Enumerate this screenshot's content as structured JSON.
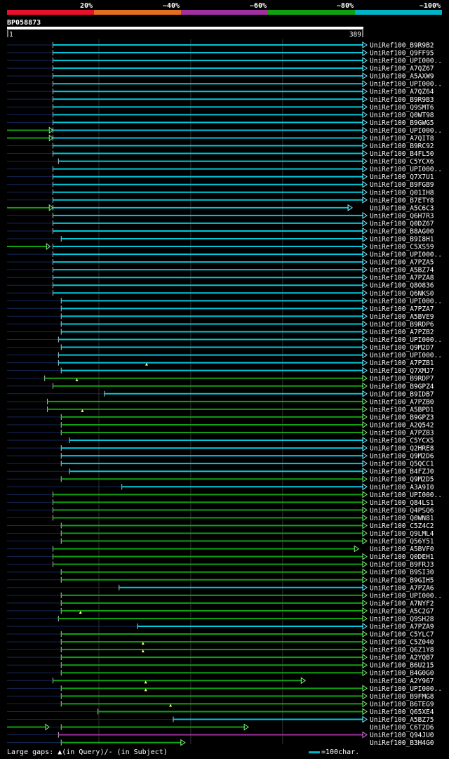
{
  "query_id": "BP058873",
  "query_start": "1",
  "query_end": "389",
  "identity_legend": [
    {
      "label": "20%",
      "color": "#e8102a"
    },
    {
      "label": "~40%",
      "color": "#e07020"
    },
    {
      "label": "~60%",
      "color": "#a030a0"
    },
    {
      "label": "~80%",
      "color": "#10a010"
    },
    {
      "label": "~100%",
      "color": "#00b4c8"
    }
  ],
  "footer": {
    "gaps_note": "Large gaps: ▲(in Query)/- (in Subject)",
    "scale_note": "=100char."
  },
  "chart_data": {
    "type": "alignment-overview",
    "query_length": 389,
    "hits": [
      {
        "name": "UniRef100_B9R9B2",
        "start": 51,
        "end": 389,
        "color": "cyan",
        "arrow": true
      },
      {
        "name": "UniRef100_Q9FF95",
        "start": 51,
        "end": 389,
        "color": "cyan",
        "arrow": true
      },
      {
        "name": "UniRef100_UPI000..",
        "start": 51,
        "end": 389,
        "color": "cyan",
        "arrow": true
      },
      {
        "name": "UniRef100_A7QZ67",
        "start": 51,
        "end": 389,
        "color": "cyan",
        "arrow": true
      },
      {
        "name": "UniRef100_A5AXW9",
        "start": 51,
        "end": 389,
        "color": "cyan",
        "arrow": true
      },
      {
        "name": "UniRef100_UPI000..",
        "start": 51,
        "end": 389,
        "color": "cyan",
        "arrow": true
      },
      {
        "name": "UniRef100_A7QZ64",
        "start": 51,
        "end": 389,
        "color": "cyan",
        "arrow": true
      },
      {
        "name": "UniRef100_B9R9B3",
        "start": 51,
        "end": 389,
        "color": "cyan",
        "arrow": true
      },
      {
        "name": "UniRef100_Q9SMT6",
        "start": 51,
        "end": 389,
        "color": "cyan",
        "arrow": true
      },
      {
        "name": "UniRef100_Q0WT98",
        "start": 51,
        "end": 389,
        "color": "cyan",
        "arrow": true
      },
      {
        "name": "UniRef100_B9GWG5",
        "start": 51,
        "end": 389,
        "color": "cyan",
        "arrow": true
      },
      {
        "name": "UniRef100_UPI000..",
        "start": 51,
        "end": 389,
        "color": "cyan",
        "arrow": true,
        "pre": [
          1,
          47
        ]
      },
      {
        "name": "UniRef100_A7QIT8",
        "start": 51,
        "end": 389,
        "color": "cyan",
        "arrow": true,
        "pre": [
          1,
          47
        ]
      },
      {
        "name": "UniRef100_B9RC92",
        "start": 51,
        "end": 389,
        "color": "cyan",
        "arrow": true
      },
      {
        "name": "UniRef100_B4FL50",
        "start": 51,
        "end": 389,
        "color": "cyan",
        "arrow": true
      },
      {
        "name": "UniRef100_C5YCX6",
        "start": 57,
        "end": 389,
        "color": "cyan",
        "arrow": true
      },
      {
        "name": "UniRef100_UPI000..",
        "start": 51,
        "end": 389,
        "color": "cyan",
        "arrow": true
      },
      {
        "name": "UniRef100_Q7X7U1",
        "start": 51,
        "end": 389,
        "color": "cyan",
        "arrow": true
      },
      {
        "name": "UniRef100_B9FGB9",
        "start": 51,
        "end": 389,
        "color": "cyan",
        "arrow": true
      },
      {
        "name": "UniRef100_Q01IH8",
        "start": 51,
        "end": 389,
        "color": "cyan",
        "arrow": true
      },
      {
        "name": "UniRef100_B7ETY8",
        "start": 51,
        "end": 389,
        "color": "cyan",
        "arrow": true
      },
      {
        "name": "UniRef100_A5C6C3",
        "start": 51,
        "end": 373,
        "color": "cyan",
        "arrow": true,
        "pre": [
          1,
          47
        ]
      },
      {
        "name": "UniRef100_Q6H7R3",
        "start": 51,
        "end": 389,
        "color": "cyan",
        "arrow": true
      },
      {
        "name": "UniRef100_Q0DZ67",
        "start": 51,
        "end": 389,
        "color": "cyan",
        "arrow": true
      },
      {
        "name": "UniRef100_B8AG00",
        "start": 51,
        "end": 389,
        "color": "cyan",
        "arrow": true
      },
      {
        "name": "UniRef100_B9I8H1",
        "start": 60,
        "end": 389,
        "color": "cyan",
        "arrow": true
      },
      {
        "name": "UniRef100_C5XS59",
        "start": 51,
        "end": 389,
        "color": "cyan",
        "arrow": true,
        "pre": [
          1,
          44
        ]
      },
      {
        "name": "UniRef100_UPI000..",
        "start": 51,
        "end": 389,
        "color": "cyan",
        "arrow": true
      },
      {
        "name": "UniRef100_A7PZA5",
        "start": 51,
        "end": 389,
        "color": "cyan",
        "arrow": true
      },
      {
        "name": "UniRef100_A5BZ74",
        "start": 51,
        "end": 389,
        "color": "cyan",
        "arrow": true
      },
      {
        "name": "UniRef100_A7PZA8",
        "start": 51,
        "end": 389,
        "color": "cyan",
        "arrow": true
      },
      {
        "name": "UniRef100_Q8O836",
        "start": 51,
        "end": 389,
        "color": "cyan",
        "arrow": true
      },
      {
        "name": "UniRef100_Q6NKS0",
        "start": 51,
        "end": 389,
        "color": "cyan",
        "arrow": true
      },
      {
        "name": "UniRef100_UPI000..",
        "start": 60,
        "end": 389,
        "color": "cyan",
        "arrow": true
      },
      {
        "name": "UniRef100_A7PZA7",
        "start": 60,
        "end": 389,
        "color": "cyan",
        "arrow": true
      },
      {
        "name": "UniRef100_A5BVE9",
        "start": 60,
        "end": 389,
        "color": "cyan",
        "arrow": true
      },
      {
        "name": "UniRef100_B9RDP6",
        "start": 60,
        "end": 389,
        "color": "cyan",
        "arrow": true
      },
      {
        "name": "UniRef100_A7PZB2",
        "start": 60,
        "end": 389,
        "color": "cyan",
        "arrow": true
      },
      {
        "name": "UniRef100_UPI000..",
        "start": 57,
        "end": 389,
        "color": "cyan",
        "arrow": true
      },
      {
        "name": "UniRef100_Q9M2D7",
        "start": 60,
        "end": 389,
        "color": "cyan",
        "arrow": true
      },
      {
        "name": "UniRef100_UPI000..",
        "start": 57,
        "end": 389,
        "color": "cyan",
        "arrow": true
      },
      {
        "name": "UniRef100_A7PZB1",
        "start": 57,
        "end": 389,
        "color": "cyan",
        "arrow": true
      },
      {
        "name": "UniRef100_Q7XMJ7",
        "start": 60,
        "end": 389,
        "color": "cyan",
        "arrow": true,
        "gaps": [
          153
        ]
      },
      {
        "name": "UniRef100_B9RDP7",
        "start": 42,
        "end": 389,
        "color": "green",
        "arrow": true
      },
      {
        "name": "UniRef100_B9GPZ4",
        "start": 51,
        "end": 389,
        "color": "green",
        "arrow": true,
        "gaps": [
          77
        ]
      },
      {
        "name": "UniRef100_B9IDB7",
        "start": 107,
        "end": 389,
        "color": "cyan",
        "arrow": true
      },
      {
        "name": "UniRef100_A7PZB0",
        "start": 45,
        "end": 389,
        "color": "green",
        "arrow": true
      },
      {
        "name": "UniRef100_A5BPD1",
        "start": 45,
        "end": 389,
        "color": "green",
        "arrow": true
      },
      {
        "name": "UniRef100_B9GPZ3",
        "start": 60,
        "end": 389,
        "color": "green",
        "arrow": true,
        "gaps": [
          83
        ]
      },
      {
        "name": "UniRef100_A2Q542",
        "start": 60,
        "end": 389,
        "color": "green",
        "arrow": true
      },
      {
        "name": "UniRef100_A7PZB3",
        "start": 60,
        "end": 389,
        "color": "green",
        "arrow": true
      },
      {
        "name": "UniRef100_C5YCX5",
        "start": 69,
        "end": 389,
        "color": "cyan",
        "arrow": true
      },
      {
        "name": "UniRef100_Q2HRE8",
        "start": 60,
        "end": 389,
        "color": "cyan",
        "arrow": true
      },
      {
        "name": "UniRef100_Q9M2D6",
        "start": 60,
        "end": 389,
        "color": "cyan",
        "arrow": true
      },
      {
        "name": "UniRef100_Q5QCC1",
        "start": 60,
        "end": 389,
        "color": "cyan",
        "arrow": true
      },
      {
        "name": "UniRef100_B4FZJ0",
        "start": 69,
        "end": 389,
        "color": "cyan",
        "arrow": true
      },
      {
        "name": "UniRef100_Q9M2D5",
        "start": 60,
        "end": 389,
        "color": "green",
        "arrow": true
      },
      {
        "name": "UniRef100_A3A9I0",
        "start": 126,
        "end": 389,
        "color": "cyan",
        "arrow": true
      },
      {
        "name": "UniRef100_UPI000..",
        "start": 51,
        "end": 389,
        "color": "green",
        "arrow": true
      },
      {
        "name": "UniRef100_Q84LS1",
        "start": 51,
        "end": 389,
        "color": "green",
        "arrow": true
      },
      {
        "name": "UniRef100_Q4PSQ6",
        "start": 51,
        "end": 389,
        "color": "green",
        "arrow": true
      },
      {
        "name": "UniRef100_Q0WN81",
        "start": 51,
        "end": 389,
        "color": "green",
        "arrow": true
      },
      {
        "name": "UniRef100_C5Z4C2",
        "start": 60,
        "end": 389,
        "color": "green",
        "arrow": true
      },
      {
        "name": "UniRef100_Q9LML4",
        "start": 60,
        "end": 389,
        "color": "green",
        "arrow": true
      },
      {
        "name": "UniRef100_Q56Y51",
        "start": 60,
        "end": 389,
        "color": "green",
        "arrow": true
      },
      {
        "name": "UniRef100_A5BVF0",
        "start": 51,
        "end": 380,
        "color": "green",
        "arrow": true
      },
      {
        "name": "UniRef100_Q0DEH1",
        "start": 51,
        "end": 389,
        "color": "green",
        "arrow": true
      },
      {
        "name": "UniRef100_B9FRJ3",
        "start": 51,
        "end": 389,
        "color": "green",
        "arrow": true
      },
      {
        "name": "UniRef100_B9SI30",
        "start": 60,
        "end": 389,
        "color": "green",
        "arrow": true
      },
      {
        "name": "UniRef100_B9GIH5",
        "start": 60,
        "end": 389,
        "color": "green",
        "arrow": true
      },
      {
        "name": "UniRef100_A7PZA6",
        "start": 123,
        "end": 389,
        "color": "cyan",
        "arrow": true
      },
      {
        "name": "UniRef100_UPI000..",
        "start": 60,
        "end": 389,
        "color": "green",
        "arrow": true
      },
      {
        "name": "UniRef100_A7NYF2",
        "start": 60,
        "end": 389,
        "color": "green",
        "arrow": true
      },
      {
        "name": "UniRef100_A5C2G7",
        "start": 60,
        "end": 389,
        "color": "green",
        "arrow": true
      },
      {
        "name": "UniRef100_Q9SH28",
        "start": 57,
        "end": 389,
        "color": "green",
        "arrow": true,
        "gaps": [
          81
        ]
      },
      {
        "name": "UniRef100_A7PZA9",
        "start": 143,
        "end": 389,
        "color": "cyan",
        "arrow": true
      },
      {
        "name": "UniRef100_C5YLC7",
        "start": 60,
        "end": 389,
        "color": "green",
        "arrow": true
      },
      {
        "name": "UniRef100_C5Z040",
        "start": 60,
        "end": 389,
        "color": "green",
        "arrow": true
      },
      {
        "name": "UniRef100_Q6Z1Y8",
        "start": 60,
        "end": 389,
        "color": "green",
        "arrow": true,
        "gaps": [
          149
        ]
      },
      {
        "name": "UniRef100_A2YQB7",
        "start": 60,
        "end": 389,
        "color": "green",
        "arrow": true,
        "gaps": [
          149
        ]
      },
      {
        "name": "UniRef100_B6U215",
        "start": 60,
        "end": 389,
        "color": "green",
        "arrow": true
      },
      {
        "name": "UniRef100_B4G0G0",
        "start": 60,
        "end": 389,
        "color": "green",
        "arrow": true
      },
      {
        "name": "UniRef100_A2Y967",
        "start": 51,
        "end": 322,
        "color": "green",
        "arrow": true
      },
      {
        "name": "UniRef100_UPI000..",
        "start": 60,
        "end": 389,
        "color": "green",
        "arrow": true,
        "gaps": [
          152
        ]
      },
      {
        "name": "UniRef100_B9FMG8",
        "start": 60,
        "end": 389,
        "color": "green",
        "arrow": true,
        "gaps": [
          152
        ]
      },
      {
        "name": "UniRef100_B6TEG9",
        "start": 60,
        "end": 389,
        "color": "green",
        "arrow": true
      },
      {
        "name": "UniRef100_Q65XE4",
        "start": 100,
        "end": 389,
        "color": "green",
        "arrow": true,
        "gaps": [
          179
        ]
      },
      {
        "name": "UniRef100_A5BZ75",
        "start": 182,
        "end": 389,
        "color": "cyan",
        "arrow": true
      },
      {
        "name": "UniRef100_C6T2D6",
        "start": 60,
        "end": 260,
        "color": "green",
        "arrow": true,
        "pre": [
          1,
          43
        ]
      },
      {
        "name": "UniRef100_Q94JU0",
        "start": 57,
        "end": 389,
        "color": "magenta",
        "arrow": true
      },
      {
        "name": "UniRef100_B3H4G0",
        "start": 60,
        "end": 191,
        "color": "green",
        "arrow": true
      }
    ]
  }
}
